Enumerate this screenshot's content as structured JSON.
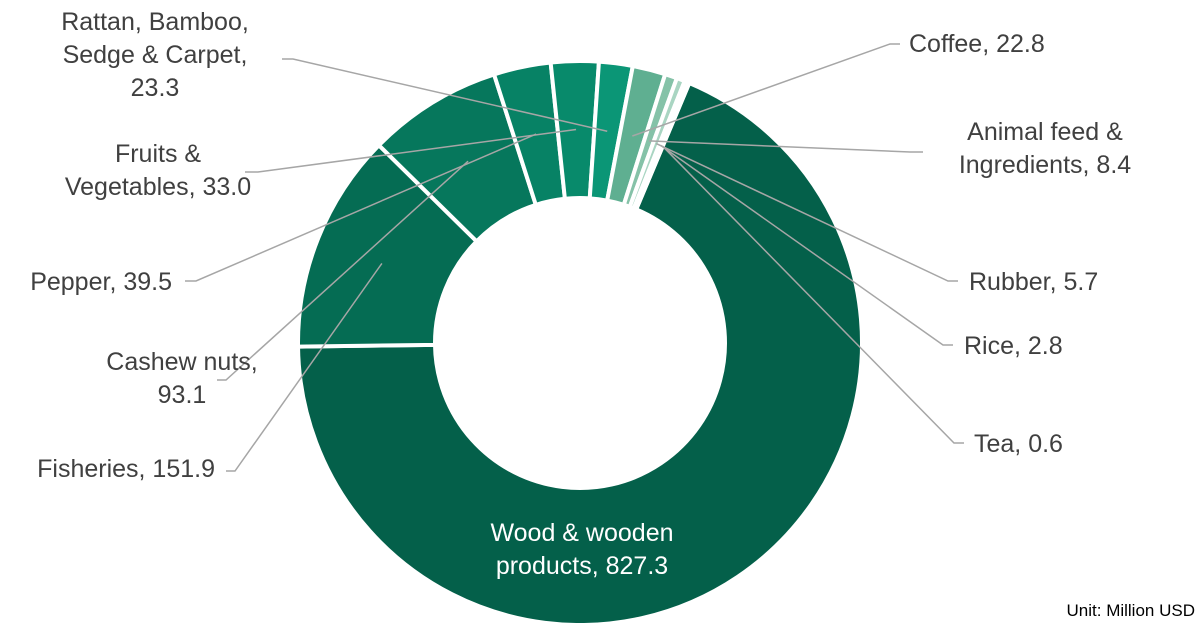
{
  "chart_data": {
    "type": "pie",
    "donut": true,
    "unit": "Unit: Million USD",
    "slices": [
      {
        "name": "Wood & wooden products",
        "value": 827.3,
        "label": [
          "Wood & wooden",
          "products, 827.3"
        ],
        "color": "#04604A"
      },
      {
        "name": "Fisheries",
        "value": 151.9,
        "label": [
          "Fisheries, 151.9"
        ],
        "color": "#056C53"
      },
      {
        "name": "Cashew nuts",
        "value": 93.1,
        "label": [
          "Cashew nuts,",
          "93.1"
        ],
        "color": "#06775C"
      },
      {
        "name": "Pepper",
        "value": 39.5,
        "label": [
          "Pepper, 39.5"
        ],
        "color": "#078265"
      },
      {
        "name": "Fruits & Vegetables",
        "value": 33.0,
        "label": [
          "Fruits &",
          "Vegetables, 33.0"
        ],
        "color": "#088A6B"
      },
      {
        "name": "Rattan, Bamboo, Sedge & Carpet",
        "value": 23.3,
        "label": [
          "Rattan, Bamboo,",
          "Sedge & Carpet,",
          "23.3"
        ],
        "color": "#0B9676"
      },
      {
        "name": "Coffee",
        "value": 22.8,
        "label": [
          "Coffee, 22.8"
        ],
        "color": "#5FAF91"
      },
      {
        "name": "Animal feed & Ingredients",
        "value": 8.4,
        "label": [
          "Animal feed &",
          "Ingredients, 8.4"
        ],
        "color": "#85C2A8"
      },
      {
        "name": "Rubber",
        "value": 5.7,
        "label": [
          "Rubber, 5.7"
        ],
        "color": "#A9D5C2"
      },
      {
        "name": "Rice",
        "value": 2.8,
        "label": [
          "Rice, 2.8"
        ],
        "color": "#C6E3D6"
      },
      {
        "name": "Tea",
        "value": 0.6,
        "label": [
          "Tea, 0.6"
        ],
        "color": "#DDEEE6"
      }
    ]
  }
}
